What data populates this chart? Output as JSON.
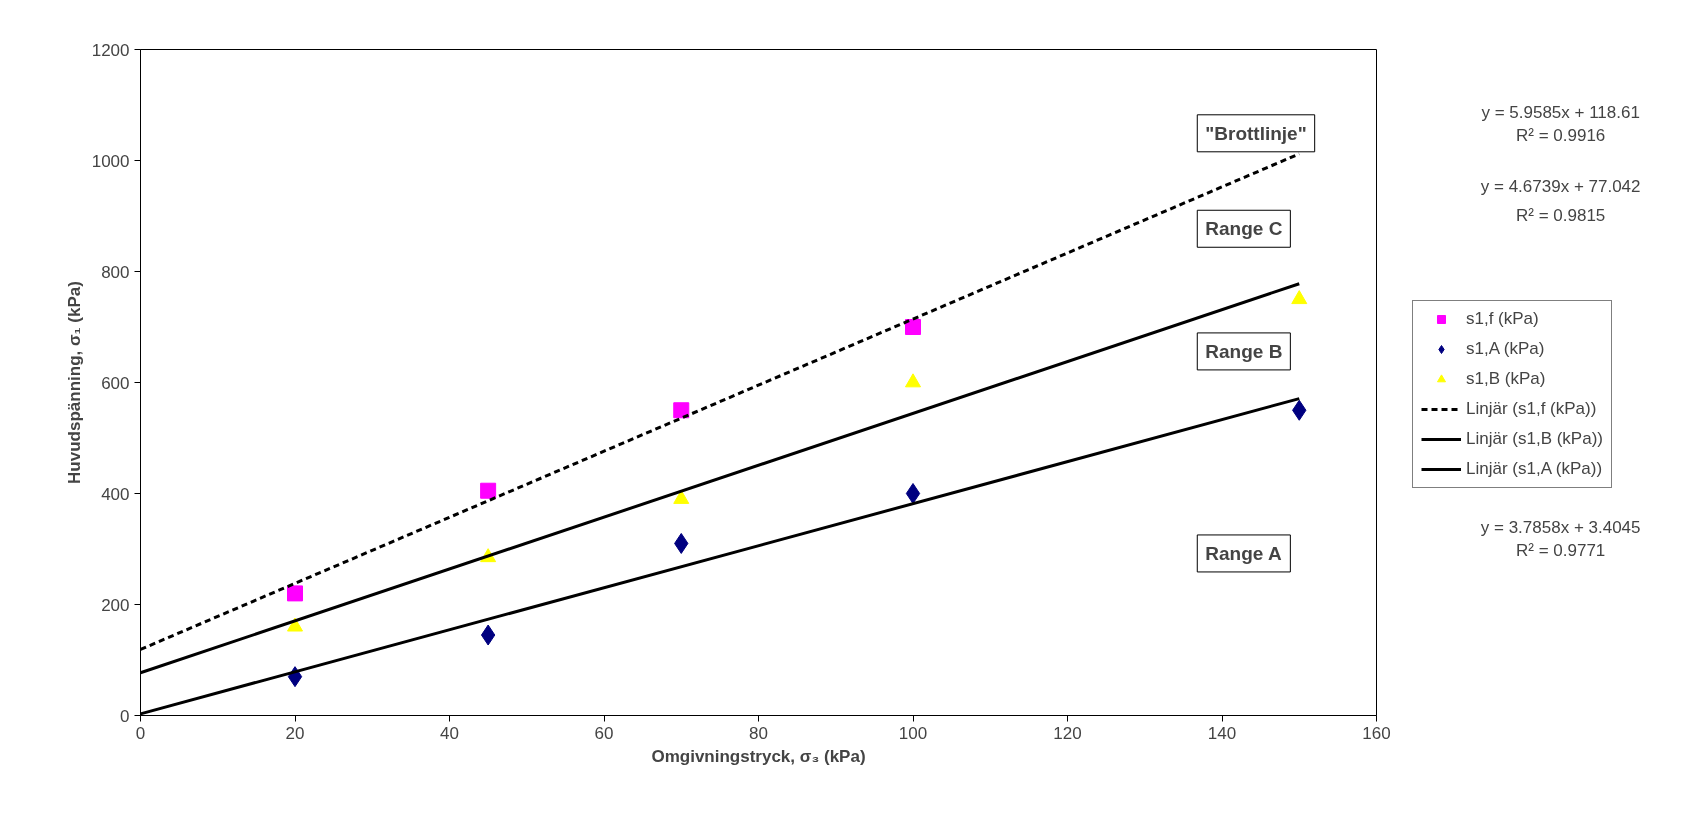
{
  "chart_data": {
    "type": "scatter",
    "xlabel": "Omgivningstryck, σ₃ (kPa)",
    "ylabel": "Huvudspänning, σ₁ (kPa)",
    "xlim": [
      0,
      160
    ],
    "xticks": [
      0,
      20,
      40,
      60,
      80,
      100,
      120,
      140,
      160
    ],
    "ylim": [
      0,
      1200
    ],
    "yticks": [
      0,
      200,
      400,
      600,
      800,
      1000,
      1200
    ],
    "grid": false,
    "legend": "right",
    "series": [
      {
        "name": "s1,f (kPa)",
        "marker": "square",
        "color": "#ff00ff",
        "x": [
          20,
          45,
          70,
          100
        ],
        "values": [
          220,
          405,
          550,
          700
        ]
      },
      {
        "name": "s1,A (kPa)",
        "marker": "diamond",
        "color": "#000080",
        "x": [
          20,
          45,
          70,
          100,
          150
        ],
        "values": [
          70,
          145,
          310,
          400,
          550
        ]
      },
      {
        "name": "s1,B (kPa)",
        "marker": "triangle",
        "color": "#ffff00",
        "x": [
          20,
          45,
          70,
          100,
          150
        ],
        "values": [
          160,
          285,
          390,
          600,
          750
        ]
      },
      {
        "name": "Linjär (s1,f (kPa))",
        "type": "line",
        "line_style": "dashed",
        "color": "#000000",
        "x": [
          0,
          150
        ],
        "values": [
          119,
          1012
        ]
      },
      {
        "name": "Linjär (s1,B (kPa))",
        "type": "line",
        "line_style": "solid",
        "color": "#000000",
        "x": [
          0,
          150
        ],
        "values": [
          77,
          778
        ]
      },
      {
        "name": "Linjär (s1,A (kPa))",
        "type": "line",
        "line_style": "solid",
        "color": "#000000",
        "x": [
          0,
          150
        ],
        "values": [
          3,
          571
        ]
      }
    ],
    "annotations": [
      "\"Brottlinje\"",
      "Range C",
      "Range B",
      "Range A",
      "y = 5.9585x + 118.61",
      "R² = 0.9916",
      "y = 4.6739x + 77.042",
      "R² = 0.9815",
      "y = 3.7858x + 3.4045",
      "R² = 0.9771"
    ]
  }
}
